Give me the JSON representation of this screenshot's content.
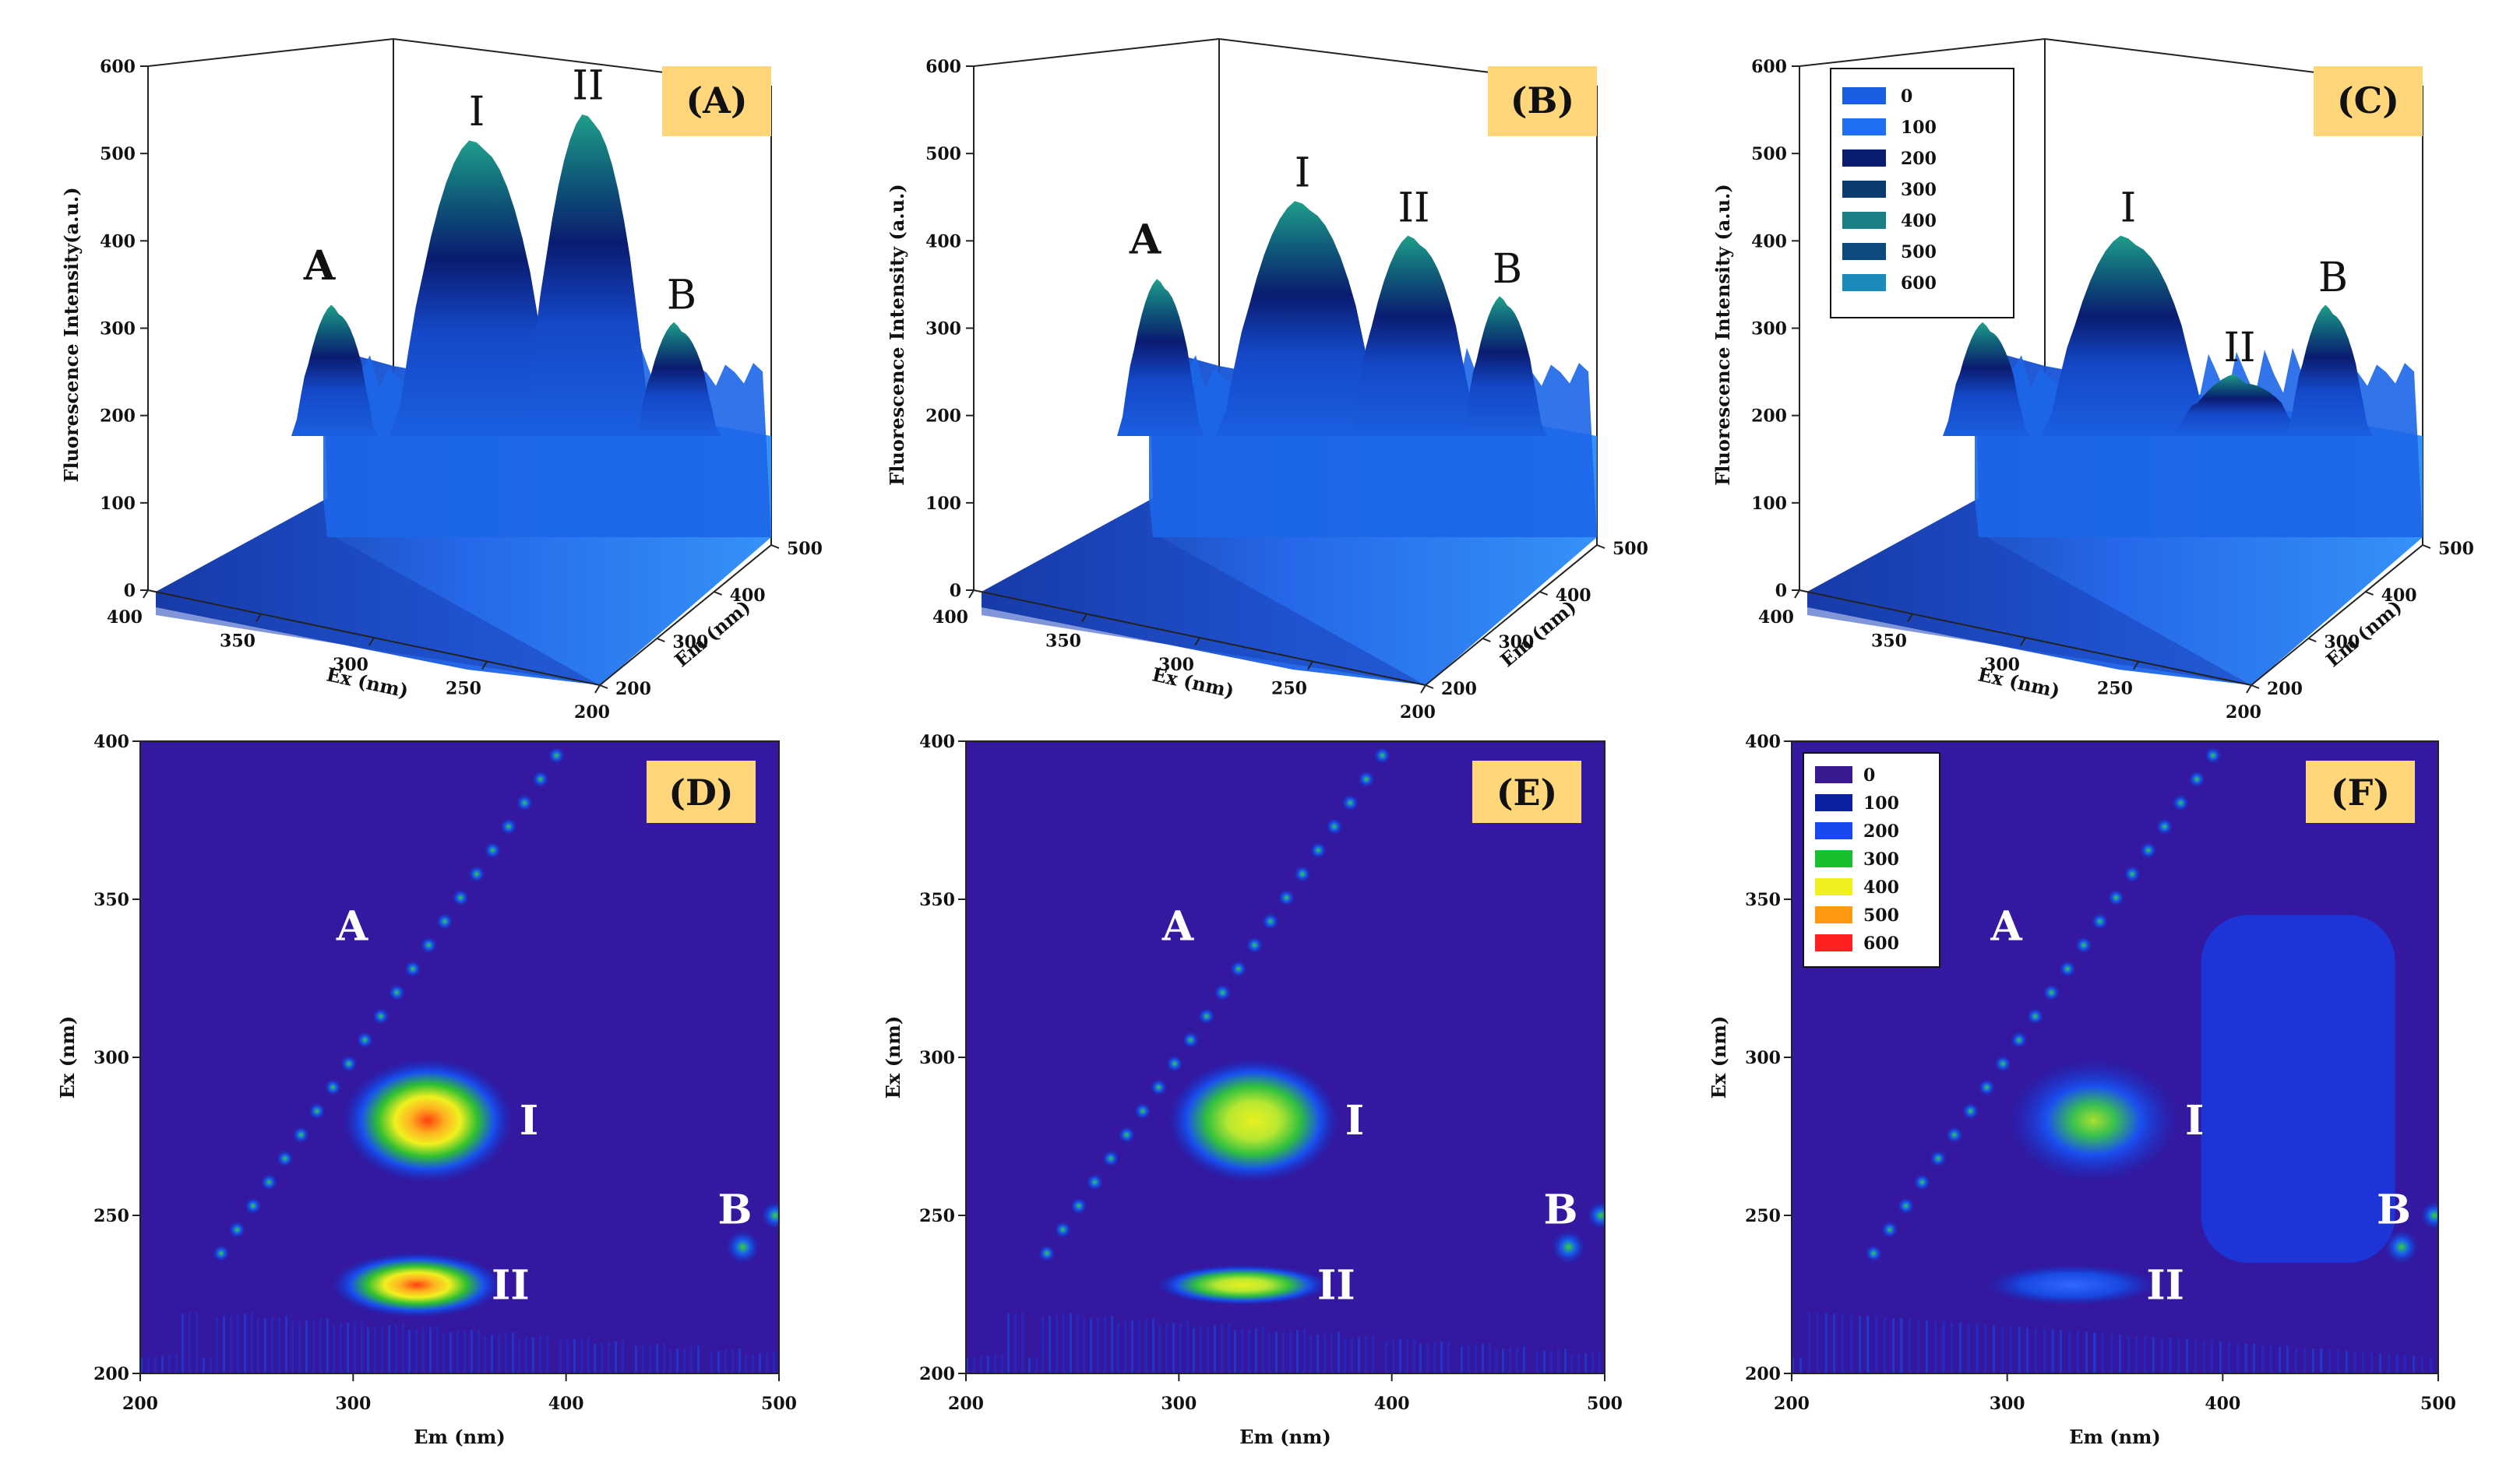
{
  "chart_data": [
    {
      "id": "A",
      "type": "surface3d",
      "tag": "(A)",
      "xlabel": "Ex (nm)",
      "ylabel": "Em (nm)",
      "zlabel": "Fluorescence Intensity(a.u.)",
      "x_ticks": [
        "400",
        "350",
        "300",
        "250",
        "200"
      ],
      "y_ticks": [
        "200",
        "300",
        "400",
        "500"
      ],
      "z_ticks": [
        "0",
        "100",
        "200",
        "300",
        "400",
        "500",
        "600"
      ],
      "zlim": [
        0,
        600
      ],
      "peaks": [
        {
          "label": "A",
          "ex": 395,
          "em": 395,
          "intensity": 320
        },
        {
          "label": "I",
          "ex": 280,
          "em": 330,
          "intensity": 510
        },
        {
          "label": "II",
          "ex": 225,
          "em": 330,
          "intensity": 540
        },
        {
          "label": "B",
          "ex": 240,
          "em": 485,
          "intensity": 300
        }
      ]
    },
    {
      "id": "B",
      "type": "surface3d",
      "tag": "(B)",
      "xlabel": "Ex (nm)",
      "ylabel": "Em (nm)",
      "zlabel": "Fluorescence Intensity (a.u.)",
      "x_ticks": [
        "400",
        "350",
        "300",
        "250",
        "200"
      ],
      "y_ticks": [
        "200",
        "300",
        "400",
        "500"
      ],
      "z_ticks": [
        "0",
        "100",
        "200",
        "300",
        "400",
        "500",
        "600"
      ],
      "zlim": [
        0,
        600
      ],
      "peaks": [
        {
          "label": "A",
          "ex": 395,
          "em": 395,
          "intensity": 350
        },
        {
          "label": "I",
          "ex": 280,
          "em": 330,
          "intensity": 440
        },
        {
          "label": "II",
          "ex": 225,
          "em": 330,
          "intensity": 400
        },
        {
          "label": "B",
          "ex": 240,
          "em": 485,
          "intensity": 330
        }
      ]
    },
    {
      "id": "C",
      "type": "surface3d",
      "tag": "(C)",
      "xlabel": "Ex (nm)",
      "ylabel": "Em (nm)",
      "zlabel": "Fluorescence Intensity (a.u.)",
      "x_ticks": [
        "400",
        "350",
        "300",
        "250",
        "200"
      ],
      "y_ticks": [
        "200",
        "300",
        "400",
        "500"
      ],
      "z_ticks": [
        "0",
        "100",
        "200",
        "300",
        "400",
        "500",
        "600"
      ],
      "zlim": [
        0,
        600
      ],
      "peaks": [
        {
          "label": "A",
          "ex": 395,
          "em": 395,
          "intensity": 300
        },
        {
          "label": "I",
          "ex": 280,
          "em": 330,
          "intensity": 400
        },
        {
          "label": "II",
          "ex": 225,
          "em": 330,
          "intensity": 240
        },
        {
          "label": "B",
          "ex": 240,
          "em": 485,
          "intensity": 320
        }
      ],
      "legend": {
        "location": "top-left",
        "entries": [
          "0",
          "100",
          "200",
          "300",
          "400",
          "500",
          "600"
        ],
        "colors": [
          "#1a5fe0",
          "#1f6ff0",
          "#0a1c70",
          "#0a3a6e",
          "#1b7f88",
          "#0d4a80",
          "#1a8ab8"
        ]
      }
    },
    {
      "id": "D",
      "type": "heatmap",
      "tag": "(D)",
      "xlabel": "Em (nm)",
      "ylabel": "Ex (nm)",
      "x_ticks": [
        "200",
        "300",
        "400",
        "500"
      ],
      "y_ticks": [
        "200",
        "250",
        "300",
        "350",
        "400"
      ],
      "xlim": [
        200,
        500
      ],
      "ylim": [
        200,
        400
      ],
      "peaks": [
        {
          "label": "A",
          "em": "diagonal Em = Ex",
          "value": 300
        },
        {
          "label": "I",
          "em": 335,
          "ex": 280,
          "value": 560
        },
        {
          "label": "II",
          "em": 330,
          "ex": 228,
          "value": 560
        },
        {
          "label": "B",
          "em": 483,
          "ex": 240,
          "value": 250
        }
      ]
    },
    {
      "id": "E",
      "type": "heatmap",
      "tag": "(E)",
      "xlabel": "Em (nm)",
      "ylabel": "Ex (nm)",
      "x_ticks": [
        "200",
        "300",
        "400",
        "500"
      ],
      "y_ticks": [
        "200",
        "250",
        "300",
        "350",
        "400"
      ],
      "xlim": [
        200,
        500
      ],
      "ylim": [
        200,
        400
      ],
      "peaks": [
        {
          "label": "A",
          "em": "diagonal Em = Ex",
          "value": 300
        },
        {
          "label": "I",
          "em": 335,
          "ex": 280,
          "value": 440
        },
        {
          "label": "II",
          "em": 330,
          "ex": 228,
          "value": 420
        },
        {
          "label": "B",
          "em": 483,
          "ex": 240,
          "value": 300
        }
      ]
    },
    {
      "id": "F",
      "type": "heatmap",
      "tag": "(F)",
      "xlabel": "Em (nm)",
      "ylabel": "Ex (nm)",
      "x_ticks": [
        "200",
        "300",
        "400",
        "500"
      ],
      "y_ticks": [
        "200",
        "250",
        "300",
        "350",
        "400"
      ],
      "xlim": [
        200,
        500
      ],
      "ylim": [
        200,
        400
      ],
      "peaks": [
        {
          "label": "A",
          "em": "diagonal Em = Ex",
          "value": 300
        },
        {
          "label": "I",
          "em": 340,
          "ex": 280,
          "value": 400
        },
        {
          "label": "II",
          "em": 330,
          "ex": 228,
          "value": 220
        },
        {
          "label": "B",
          "em": 483,
          "ex": 240,
          "value": 300
        }
      ],
      "legend": {
        "location": "top-left",
        "entries": [
          "0",
          "100",
          "200",
          "300",
          "400",
          "500",
          "600"
        ],
        "colors": [
          "#3a1890",
          "#0a20a0",
          "#1848f0",
          "#18c030",
          "#f0f020",
          "#ff9a10",
          "#ff2020"
        ]
      }
    }
  ]
}
